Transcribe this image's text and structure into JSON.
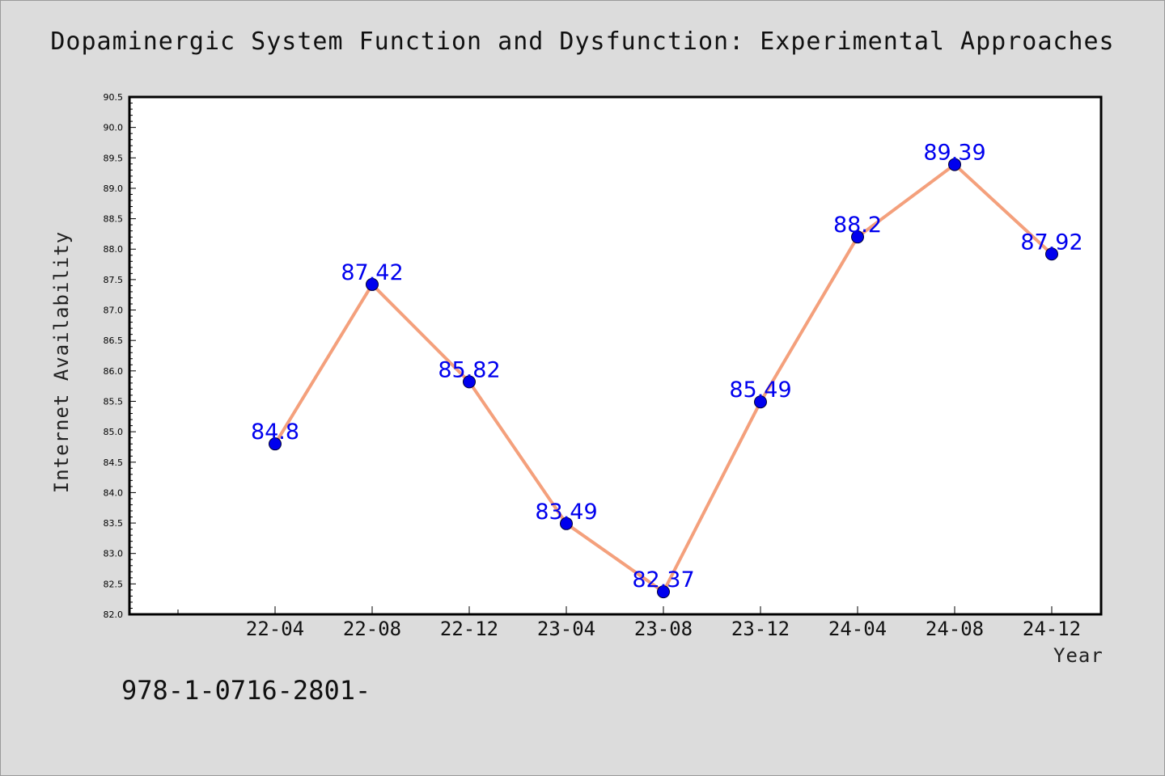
{
  "chart_data": {
    "type": "line",
    "title": "Dopaminergic System Function and Dysfunction: Experimental Approaches",
    "xlabel": "Year",
    "ylabel": "Internet Availability",
    "x": [
      "22-04",
      "22-08",
      "22-12",
      "23-04",
      "23-08",
      "23-12",
      "24-04",
      "24-08",
      "24-12"
    ],
    "series": [
      {
        "values": [
          84.8,
          87.42,
          85.82,
          83.49,
          82.37,
          85.49,
          88.2,
          89.39,
          87.92
        ],
        "data_labels": [
          "84.8",
          "87.42",
          "85.82",
          "83.49",
          "82.37",
          "85.49",
          "88.2",
          "89.39",
          "87.92"
        ]
      }
    ],
    "ylim": [
      82.0,
      90.5
    ],
    "y_ticks": [
      "82.0",
      "82.5",
      "83.0",
      "83.5",
      "84.0",
      "84.5",
      "85.0",
      "85.5",
      "86.0",
      "86.5",
      "87.0",
      "87.5",
      "88.0",
      "88.5",
      "89.0",
      "89.5",
      "90.0",
      "90.5"
    ],
    "grid": false,
    "legend": "none",
    "colors": {
      "line": "#f4a07c",
      "marker": "#0000ee",
      "label": "#0000ee",
      "background": "#dcdcdc",
      "plot_bg": "#ffffff"
    }
  },
  "footnote": "978-1-0716-2801-"
}
